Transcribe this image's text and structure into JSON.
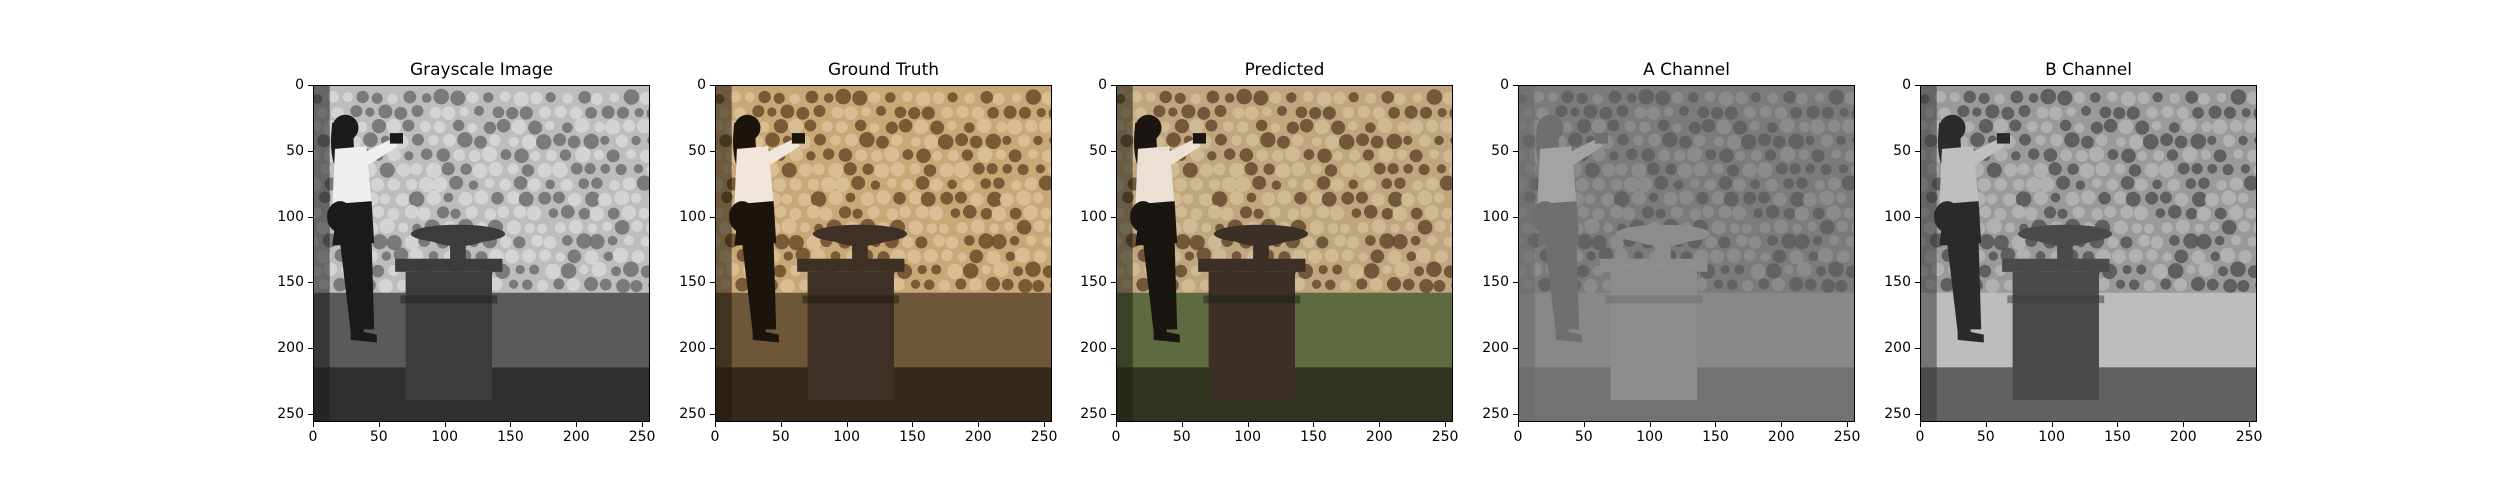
{
  "figure": {
    "panels": [
      {
        "id": "grayscale",
        "title": "Grayscale Image",
        "kind": "gray"
      },
      {
        "id": "ground-truth",
        "title": "Ground Truth",
        "kind": "warm"
      },
      {
        "id": "predicted",
        "title": "Predicted",
        "kind": "green"
      },
      {
        "id": "a-channel",
        "title": "A Channel",
        "kind": "achannel"
      },
      {
        "id": "b-channel",
        "title": "B Channel",
        "kind": "bchannel"
      }
    ],
    "x_ticks": [
      "0",
      "50",
      "100",
      "150",
      "200",
      "250"
    ],
    "y_ticks": [
      "0",
      "50",
      "100",
      "150",
      "200",
      "250"
    ],
    "x_tick_values": [
      0,
      50,
      100,
      150,
      200,
      250
    ],
    "y_tick_values": [
      0,
      50,
      100,
      150,
      200,
      250
    ],
    "axis_range": [
      0,
      256
    ]
  },
  "colors": {
    "gray": {
      "wall": "#bdbdbd",
      "wallDark": "#6e6e6e",
      "floor": "#5a5a5a",
      "floorDark": "#1e1e1e",
      "figure": "#1a1a1a",
      "shirt": "#efefef",
      "pedestal": "#3c3c3c",
      "sky": "#d8d8d8"
    },
    "warm": {
      "wall": "#c9a878",
      "wallDark": "#6b4c2c",
      "floor": "#6e5638",
      "floorDark": "#1f170e",
      "figure": "#1b140c",
      "shirt": "#f2e6da",
      "pedestal": "#3e3024",
      "sky": "#dcc29a"
    },
    "green": {
      "wall": "#c0a67e",
      "wallDark": "#64492f",
      "floor": "#5e6a40",
      "floorDark": "#1d1f12",
      "figure": "#1a1510",
      "shirt": "#ecdfd3",
      "pedestal": "#3b2f26",
      "sky": "#d2bd98"
    },
    "achannel": {
      "wall": "#7b7b7b",
      "wallDark": "#5e5e5e",
      "floor": "#888888",
      "floorDark": "#6a6a6a",
      "figure": "#6f6f6f",
      "shirt": "#a3a3a3",
      "pedestal": "#8d8d8d",
      "sky": "#8e8e8e"
    },
    "bchannel": {
      "wall": "#9a9a9a",
      "wallDark": "#555555",
      "floor": "#bdbdbd",
      "floorDark": "#3a3a3a",
      "figure": "#2a2a2a",
      "shirt": "#bfbfbf",
      "pedestal": "#4a4a4a",
      "sky": "#b5b5b5"
    }
  }
}
